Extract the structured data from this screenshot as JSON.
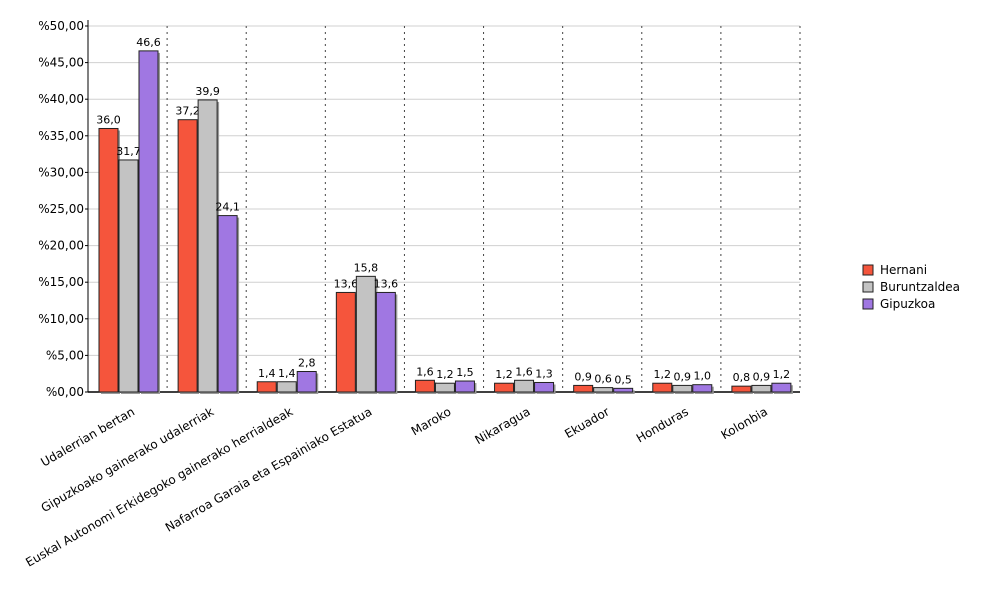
{
  "chart_data": {
    "type": "bar",
    "categories": [
      "Udalerrian bertan",
      "Gipuzkoako gainerako udalerriak",
      "Euskal Autonomi Erkidegoko gainerako herrialdeak",
      "Nafarroa Garaia eta Espainiako Estatua",
      "Maroko",
      "Nikaragua",
      "Ekuador",
      "Honduras",
      "Kolonbia"
    ],
    "series": [
      {
        "name": "Hernani",
        "color": "#f5553c",
        "values": [
          36.0,
          37.2,
          1.4,
          13.6,
          1.6,
          1.2,
          0.9,
          1.2,
          0.8
        ],
        "value_labels": [
          "36,0",
          "37,2",
          "1,4",
          "13,6",
          "1,6",
          "1,2",
          "0,9",
          "1,2",
          "0,8"
        ]
      },
      {
        "name": "Buruntzaldea",
        "color": "#c3c3c3",
        "values": [
          31.7,
          39.9,
          1.4,
          15.8,
          1.2,
          1.6,
          0.6,
          0.9,
          0.9
        ],
        "value_labels": [
          "31,7",
          "39,9",
          "1,4",
          "15,8",
          "1,2",
          "1,6",
          "0,6",
          "0,9",
          "0,9"
        ]
      },
      {
        "name": "Gipuzkoa",
        "color": "#a077e2",
        "values": [
          46.6,
          24.1,
          2.8,
          13.6,
          1.5,
          1.3,
          0.5,
          1.0,
          1.2
        ],
        "value_labels": [
          "46,6",
          "24,1",
          "2,8",
          "13,6",
          "1,5",
          "1,3",
          "0,5",
          "1,0",
          "1,2"
        ]
      }
    ],
    "ylim": [
      0,
      50
    ],
    "yticks": [
      {
        "value": 0,
        "label": "%0,00"
      },
      {
        "value": 5,
        "label": "%5,00"
      },
      {
        "value": 10,
        "label": "%10,00"
      },
      {
        "value": 15,
        "label": "%15,00"
      },
      {
        "value": 20,
        "label": "%20,00"
      },
      {
        "value": 25,
        "label": "%25,00"
      },
      {
        "value": 30,
        "label": "%30,00"
      },
      {
        "value": 35,
        "label": "%35,00"
      },
      {
        "value": 40,
        "label": "%40,00"
      },
      {
        "value": 45,
        "label": "%45,00"
      },
      {
        "value": 50,
        "label": "%50,00"
      }
    ],
    "grid": true,
    "legend": "right"
  }
}
